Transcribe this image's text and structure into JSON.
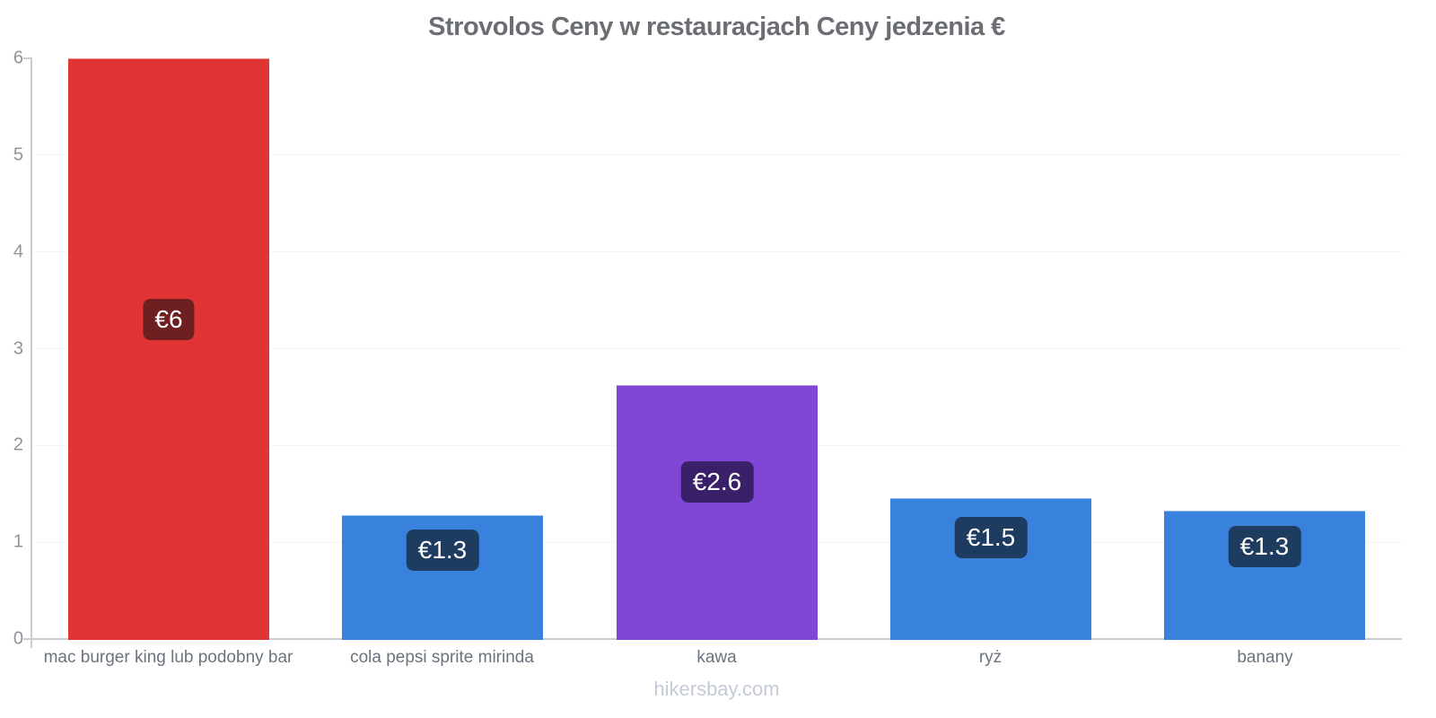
{
  "page": {
    "title": "Strovolos Ceny w restauracjach Ceny jedzenia €",
    "footer": "hikersbay.com"
  },
  "chart_data": {
    "type": "bar",
    "title": "Strovolos Ceny w restauracjach Ceny jedzenia €",
    "currency": "€",
    "categories": [
      "mac burger king lub podobny bar",
      "cola pepsi sprite mirinda",
      "kawa",
      "ryż",
      "banany"
    ],
    "values": [
      6,
      1.3,
      2.6,
      1.5,
      1.3
    ],
    "exact_values": [
      6,
      1.28,
      2.62,
      1.46,
      1.33
    ],
    "value_labels": [
      "€6",
      "€1.3",
      "€2.6",
      "€1.5",
      "€1.3"
    ],
    "bar_colors": [
      "#e13434",
      "#3882dd",
      "#8047d7",
      "#3882dd",
      "#3882dd"
    ],
    "label_badge_colors": [
      "#6e1f1f",
      "#1d3c5f",
      "#3a2069",
      "#1d3c5f",
      "#1d3c5f"
    ],
    "ylim": [
      0,
      6
    ],
    "yticks": [
      0,
      1,
      2,
      3,
      4,
      5,
      6
    ],
    "grid": true,
    "legend": "none",
    "xlabel": "",
    "ylabel": "",
    "colors": {
      "axis": "#c9ccd1",
      "grid": "#f3f4f5",
      "title_text": "#6b6e73",
      "ytick_text": "#8f949b",
      "xtick_text": "#6b737d",
      "footer_text": "#c4cada",
      "value_text": "#ffffff"
    }
  }
}
